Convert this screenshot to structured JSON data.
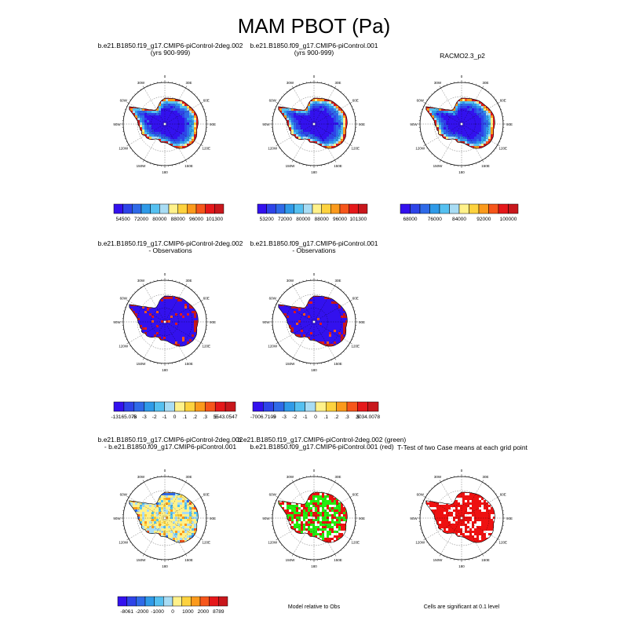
{
  "title": "MAM PBOT (Pa)",
  "axis_labels": [
    "0",
    "30E",
    "60E",
    "90E",
    "120E",
    "150E",
    "180",
    "150W",
    "120W",
    "90W",
    "60W",
    "30W"
  ],
  "colors": {
    "abs": [
      "#3311ee",
      "#2e44e8",
      "#2f6ae8",
      "#2f9ae8",
      "#55c0f0",
      "#a8dcf4",
      "#fff18a",
      "#fdd23e",
      "#fb9a1c",
      "#f6561b",
      "#e5181a",
      "#c8171c"
    ],
    "diff": [
      "#3311ee",
      "#2e44e8",
      "#2f6ae8",
      "#2f9ae8",
      "#55c0f0",
      "#a8dcf4",
      "#fff18a",
      "#fdd23e",
      "#fb9a1c",
      "#f6561b",
      "#e5181a",
      "#c8171c"
    ],
    "green": "#22ee11",
    "red": "#ee1111",
    "white": "#ffffff"
  },
  "panels": [
    {
      "id": "p1",
      "title_lines": [
        "b.e21.B1850.f19_g17.CMIP6-piControl-2deg.002",
        "(yrs 900-999)"
      ],
      "scheme": "abs",
      "colorbar_labels": [
        "54500",
        "72000",
        "80000",
        "88000",
        "96000",
        "101300"
      ]
    },
    {
      "id": "p2",
      "title_lines": [
        "b.e21.B1850.f09_g17.CMIP6-piControl.001",
        "(yrs 900-999)"
      ],
      "scheme": "abs",
      "colorbar_labels": [
        "53200",
        "72000",
        "80000",
        "88000",
        "96000",
        "101300"
      ]
    },
    {
      "id": "p3",
      "title_lines": [
        "RACMO2.3_p2"
      ],
      "scheme": "abs",
      "colorbar_labels": [
        "68000",
        "76000",
        "84000",
        "92000",
        "100000"
      ]
    },
    {
      "id": "p4",
      "title_lines": [
        "b.e21.B1850.f19_g17.CMIP6-piControl-2deg.002",
        "- Observations"
      ],
      "scheme": "diffobs",
      "colorbar_labels": [
        "-13165.078",
        "-5",
        "-3",
        "-2",
        "-1",
        "0",
        ".1",
        ".2",
        ".3",
        ".5",
        "5543.0547"
      ]
    },
    {
      "id": "p5",
      "title_lines": [
        "b.e21.B1850.f09_g17.CMIP6-piControl.001",
        "- Observations"
      ],
      "scheme": "diffobs",
      "colorbar_labels": [
        "-7006.7109",
        "-5",
        "-3",
        "-2",
        "-1",
        "0",
        ".1",
        ".2",
        ".3",
        ".5",
        "3034.0078"
      ]
    },
    {
      "id": "p6",
      "title_lines": [
        "b.e21.B1850.f19_g17.CMIP6-piControl-2deg.002",
        "- b.e21.B1850.f09_g17.CMIP6-piControl.001"
      ],
      "scheme": "diffcase",
      "colorbar_labels": [
        "-8061",
        "-2000",
        "-1000",
        "0",
        "1000",
        "2000",
        "8789"
      ]
    },
    {
      "id": "p7",
      "title_lines": [
        "b.e21.B1850.f19_g17.CMIP6-piControl-2deg.002 (green)",
        "b.e21.B1850.f09_g17.CMIP6-piControl.001 (red)"
      ],
      "scheme": "greenred",
      "note": "Model relative to Obs"
    },
    {
      "id": "p8",
      "title_lines": [
        "T-Test of two Case means at each grid point"
      ],
      "scheme": "ttest",
      "note": "Cells are significant at 0.1 level"
    }
  ],
  "chart_data": {
    "type": "heatmap",
    "title": "MAM PBOT (Pa)",
    "projection": "south polar stereographic",
    "longitude_labels": [
      "0",
      "30E",
      "60E",
      "90E",
      "120E",
      "150E",
      "180",
      "150W",
      "120W",
      "90W",
      "60W",
      "30W"
    ],
    "panels": [
      {
        "title": "b.e21.B1850.f19_g17.CMIP6-piControl-2deg.002 (yrs 900-999)",
        "colorbar": [
          54500,
          72000,
          80000,
          88000,
          96000,
          101300
        ]
      },
      {
        "title": "b.e21.B1850.f09_g17.CMIP6-piControl.001 (yrs 900-999)",
        "colorbar": [
          53200,
          72000,
          80000,
          88000,
          96000,
          101300
        ]
      },
      {
        "title": "RACMO2.3_p2",
        "colorbar": [
          68000,
          76000,
          84000,
          92000,
          100000
        ]
      },
      {
        "title": "b.e21.B1850.f19_g17.CMIP6-piControl-2deg.002 - Observations",
        "colorbar": [
          -13165.078,
          -5,
          -3,
          -2,
          -1,
          0,
          0.1,
          0.2,
          0.3,
          0.5,
          5543.0547
        ]
      },
      {
        "title": "b.e21.B1850.f09_g17.CMIP6-piControl.001 - Observations",
        "colorbar": [
          -7006.7109,
          -5,
          -3,
          -2,
          -1,
          0,
          0.1,
          0.2,
          0.3,
          0.5,
          3034.0078
        ]
      },
      {
        "title": "b.e21.B1850.f19_g17.CMIP6-piControl-2deg.002 - b.e21.B1850.f09_g17.CMIP6-piControl.001",
        "colorbar": [
          -8061,
          -2000,
          -1000,
          0,
          1000,
          2000,
          8789
        ]
      },
      {
        "title": "b.e21.B1850.f19_g17.CMIP6-piControl-2deg.002 (green) b.e21.B1850.f09_g17.CMIP6-piControl.001 (red)",
        "note": "Model relative to Obs"
      },
      {
        "title": "T-Test of two Case means at each grid point",
        "note": "Cells are significant at 0.1 level"
      }
    ]
  }
}
